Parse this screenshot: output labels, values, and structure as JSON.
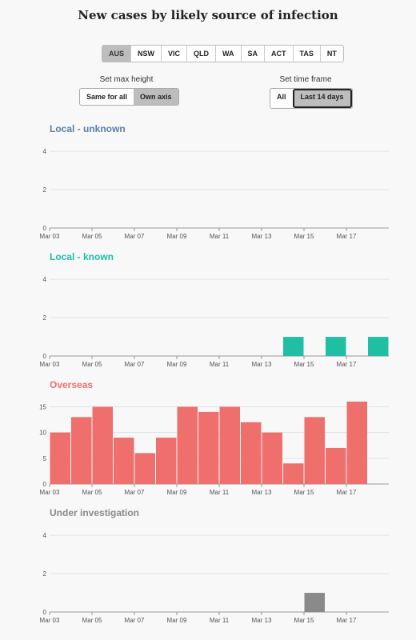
{
  "title": "New cases by likely source of infection",
  "states": [
    {
      "label": "AUS",
      "active": true
    },
    {
      "label": "NSW",
      "active": false
    },
    {
      "label": "VIC",
      "active": false
    },
    {
      "label": "QLD",
      "active": false
    },
    {
      "label": "WA",
      "active": false
    },
    {
      "label": "SA",
      "active": false
    },
    {
      "label": "ACT",
      "active": false
    },
    {
      "label": "TAS",
      "active": false
    },
    {
      "label": "NT",
      "active": false
    }
  ],
  "max_height": {
    "label": "Set max height",
    "options": [
      {
        "label": "Same for all",
        "active": false
      },
      {
        "label": "Own axis",
        "active": true
      }
    ]
  },
  "time_frame": {
    "label": "Set time frame",
    "options": [
      {
        "label": "All",
        "active": false
      },
      {
        "label": "Last 14 days",
        "active": true
      }
    ]
  },
  "chart_data": [
    {
      "type": "bar",
      "title": "Local - unknown",
      "color": "#5b7fa6",
      "categories": [
        "Mar 03",
        "Mar 04",
        "Mar 05",
        "Mar 06",
        "Mar 07",
        "Mar 08",
        "Mar 09",
        "Mar 10",
        "Mar 11",
        "Mar 12",
        "Mar 13",
        "Mar 14",
        "Mar 15",
        "Mar 16",
        "Mar 17",
        "Mar 18"
      ],
      "values": [
        0,
        0,
        0,
        0,
        0,
        0,
        0,
        0,
        0,
        0,
        0,
        0,
        0,
        0,
        0,
        0
      ],
      "yticks": [
        0,
        2,
        4
      ],
      "ylim": [
        0,
        4.3
      ],
      "xticks": [
        "Mar 03",
        "Mar 05",
        "Mar 07",
        "Mar 09",
        "Mar 11",
        "Mar 13",
        "Mar 15",
        "Mar 17"
      ],
      "grid": true
    },
    {
      "type": "bar",
      "title": "Local - known",
      "color": "#20bfa3",
      "categories": [
        "Mar 03",
        "Mar 04",
        "Mar 05",
        "Mar 06",
        "Mar 07",
        "Mar 08",
        "Mar 09",
        "Mar 10",
        "Mar 11",
        "Mar 12",
        "Mar 13",
        "Mar 14",
        "Mar 15",
        "Mar 16",
        "Mar 17",
        "Mar 18"
      ],
      "values": [
        0,
        0,
        0,
        0,
        0,
        0,
        0,
        0,
        0,
        0,
        0,
        1,
        0,
        1,
        0,
        1
      ],
      "yticks": [
        0,
        2,
        4
      ],
      "ylim": [
        0,
        4.3
      ],
      "xticks": [
        "Mar 03",
        "Mar 05",
        "Mar 07",
        "Mar 09",
        "Mar 11",
        "Mar 13",
        "Mar 15",
        "Mar 17"
      ],
      "grid": true
    },
    {
      "type": "bar",
      "title": "Overseas",
      "color": "#ef6f6c",
      "categories": [
        "Mar 03",
        "Mar 04",
        "Mar 05",
        "Mar 06",
        "Mar 07",
        "Mar 08",
        "Mar 09",
        "Mar 10",
        "Mar 11",
        "Mar 12",
        "Mar 13",
        "Mar 14",
        "Mar 15",
        "Mar 16",
        "Mar 17",
        "Mar 18"
      ],
      "values": [
        10,
        13,
        15,
        9,
        6,
        9,
        15,
        14,
        15,
        12,
        10,
        4,
        13,
        7,
        16,
        0
      ],
      "yticks": [
        0,
        5,
        10,
        15
      ],
      "ylim": [
        0,
        16
      ],
      "xticks": [
        "Mar 03",
        "Mar 05",
        "Mar 07",
        "Mar 09",
        "Mar 11",
        "Mar 13",
        "Mar 15",
        "Mar 17"
      ],
      "grid": true
    },
    {
      "type": "bar",
      "title": "Under investigation",
      "color": "#8a8a8a",
      "categories": [
        "Mar 03",
        "Mar 04",
        "Mar 05",
        "Mar 06",
        "Mar 07",
        "Mar 08",
        "Mar 09",
        "Mar 10",
        "Mar 11",
        "Mar 12",
        "Mar 13",
        "Mar 14",
        "Mar 15",
        "Mar 16",
        "Mar 17",
        "Mar 18"
      ],
      "values": [
        0,
        0,
        0,
        0,
        0,
        0,
        0,
        0,
        0,
        0,
        0,
        0,
        1,
        0,
        0,
        0
      ],
      "yticks": [
        0,
        2,
        4
      ],
      "ylim": [
        0,
        4.3
      ],
      "xticks": [
        "Mar 03",
        "Mar 05",
        "Mar 07",
        "Mar 09",
        "Mar 11",
        "Mar 13",
        "Mar 15",
        "Mar 17"
      ],
      "grid": true
    }
  ]
}
